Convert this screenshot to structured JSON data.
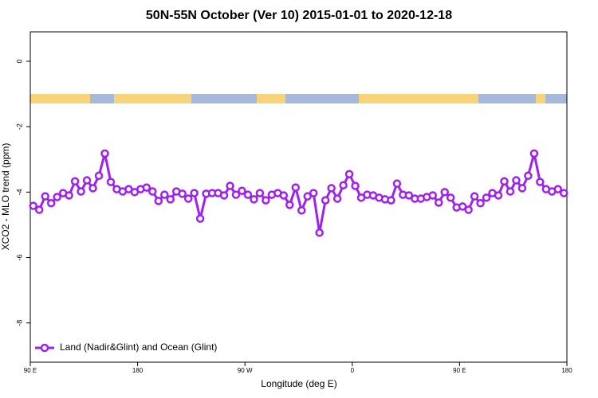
{
  "chart_data": {
    "type": "line",
    "title": "50N-55N October (Ver 10)   2015-01-01 to 2020-12-18",
    "x_label": "Longitude (deg E)",
    "y_label": "XCO2 - MLO trend (ppm)",
    "xlim": [
      90,
      540
    ],
    "xticks": [
      {
        "value": 90,
        "label": "90 E"
      },
      {
        "value": 180,
        "label": "180"
      },
      {
        "value": 270,
        "label": "90 W"
      },
      {
        "value": 360,
        "label": "0"
      },
      {
        "value": 450,
        "label": "90 E"
      },
      {
        "value": 540,
        "label": "180"
      }
    ],
    "ylim": [
      -9.2,
      0.9
    ],
    "yticks": [
      0,
      -2,
      -4,
      -6,
      -8
    ],
    "legend_position": "bottom-left",
    "x": [
      92.5,
      97.5,
      102.5,
      107.5,
      112.5,
      117.5,
      122.5,
      127.5,
      132.5,
      137.5,
      142.5,
      147.5,
      152.5,
      157.5,
      162.5,
      167.5,
      172.5,
      177.5,
      182.5,
      187.5,
      192.5,
      197.5,
      202.5,
      207.5,
      212.5,
      217.5,
      222.5,
      227.5,
      232.5,
      237.5,
      242.5,
      247.5,
      252.5,
      257.5,
      262.5,
      267.5,
      272.5,
      277.5,
      282.5,
      287.5,
      292.5,
      297.5,
      302.5,
      307.5,
      312.5,
      317.5,
      322.5,
      327.5,
      332.5,
      337.5,
      342.5,
      347.5,
      352.5,
      357.5,
      362.5,
      367.5,
      372.5,
      377.5,
      382.5,
      387.5,
      392.5,
      397.5,
      402.5,
      407.5,
      412.5,
      417.5,
      422.5,
      427.5,
      432.5,
      437.5,
      442.5,
      447.5,
      452.5,
      457.5,
      462.5,
      467.5,
      472.5,
      477.5,
      482.5,
      487.5,
      492.5,
      497.5,
      502.5,
      507.5,
      512.5,
      517.5,
      522.5,
      527.5,
      532.5,
      537.5
    ],
    "series": [
      {
        "name": "Land (Nadir&Glint) and Ocean (Glint)",
        "color": "#a020f0",
        "values": [
          -4.42,
          -4.54,
          -4.13,
          -4.34,
          -4.15,
          -4.03,
          -4.1,
          -3.67,
          -3.98,
          -3.64,
          -3.88,
          -3.5,
          -2.82,
          -3.69,
          -3.91,
          -3.98,
          -3.91,
          -4.0,
          -3.91,
          -3.86,
          -3.98,
          -4.27,
          -4.08,
          -4.22,
          -3.98,
          -4.05,
          -4.2,
          -4.03,
          -4.81,
          -4.05,
          -4.03,
          -4.03,
          -4.1,
          -3.81,
          -4.08,
          -3.96,
          -4.08,
          -4.22,
          -4.03,
          -4.25,
          -4.08,
          -4.03,
          -4.1,
          -4.39,
          -3.86,
          -4.56,
          -4.13,
          -4.03,
          -5.24,
          -4.25,
          -3.88,
          -4.2,
          -3.79,
          -3.45,
          -3.81,
          -4.17,
          -4.08,
          -4.1,
          -4.17,
          -4.22,
          -4.25,
          -3.74,
          -4.08,
          -4.1,
          -4.2,
          -4.2,
          -4.15,
          -4.1,
          -4.32,
          -4.0,
          -4.17,
          -4.47,
          -4.44,
          -4.54,
          -4.13,
          -4.34,
          -4.17,
          -4.03,
          -4.1,
          -3.67,
          -3.98,
          -3.64,
          -3.88,
          -3.5,
          -2.82,
          -3.69,
          -3.91,
          -3.98,
          -3.91,
          -4.03
        ]
      }
    ]
  }
}
